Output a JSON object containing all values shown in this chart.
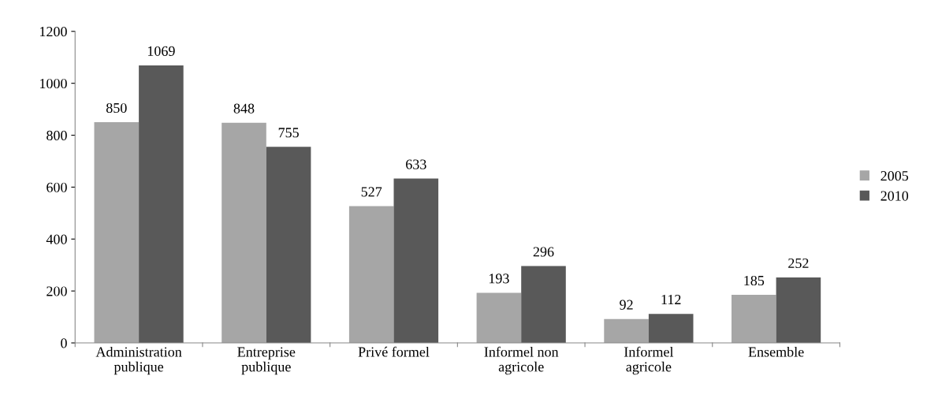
{
  "chart_data": {
    "type": "bar",
    "categories": [
      "Administration\npublique",
      "Entreprise\npublique",
      "Privé formel",
      "Informel non\nagricole",
      "Informel\nagricole",
      "Ensemble"
    ],
    "series": [
      {
        "name": "2005",
        "color": "#a6a6a6",
        "values": [
          850,
          848,
          527,
          193,
          92,
          185
        ]
      },
      {
        "name": "2010",
        "color": "#595959",
        "values": [
          1069,
          755,
          633,
          296,
          112,
          252
        ]
      }
    ],
    "ylim": [
      0,
      1200
    ],
    "yticks": [
      0,
      200,
      400,
      600,
      800,
      1000,
      1200
    ],
    "data_labels": true,
    "grid": false,
    "legend": "right"
  }
}
